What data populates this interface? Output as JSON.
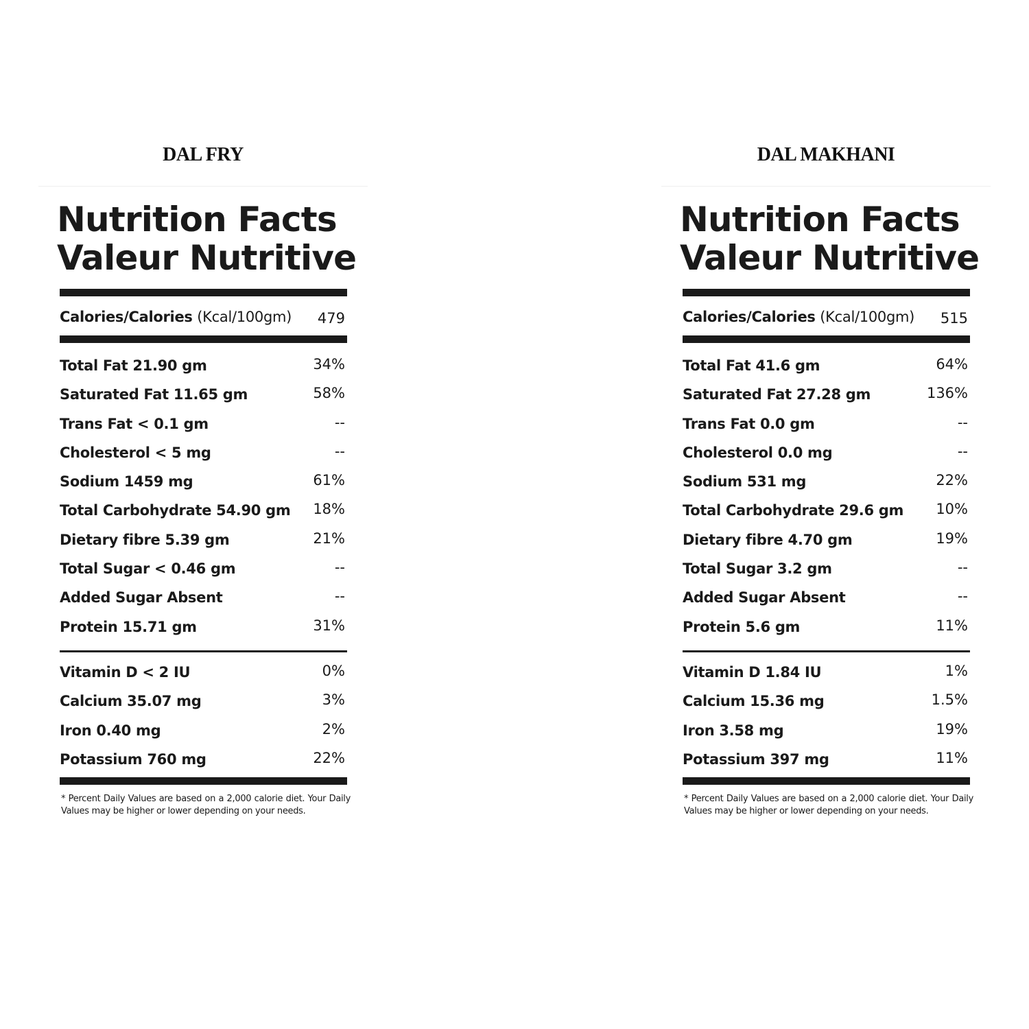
{
  "panels": [
    {
      "product": "DAL FRY",
      "title_line1": "Nutrition Facts",
      "title_line2": "Valeur Nutritive",
      "calories_label": "Calories/Calories",
      "calories_unit": "(Kcal/100gm)",
      "calories_value": "479",
      "nutrients": [
        {
          "label": "Total Fat 21.90 gm",
          "value": "34%"
        },
        {
          "label": "Saturated Fat 11.65 gm",
          "value": "58%"
        },
        {
          "label": "Trans Fat < 0.1 gm",
          "value": "--"
        },
        {
          "label": "Cholesterol < 5 mg",
          "value": "--"
        },
        {
          "label": "Sodium 1459 mg",
          "value": "61%"
        },
        {
          "label": "Total Carbohydrate 54.90 gm",
          "value": "18%"
        },
        {
          "label": "Dietary fibre 5.39 gm",
          "value": "21%"
        },
        {
          "label": "Total Sugar < 0.46 gm",
          "value": "--"
        },
        {
          "label": "Added Sugar Absent",
          "value": "--"
        },
        {
          "label": "Protein 15.71 gm",
          "value": "31%"
        }
      ],
      "vitamins": [
        {
          "label": "Vitamin D < 2 IU",
          "value": "0%"
        },
        {
          "label": "Calcium 35.07 mg",
          "value": "3%"
        },
        {
          "label": "Iron 0.40 mg",
          "value": "2%"
        },
        {
          "label": "Potassium 760 mg",
          "value": "22%"
        }
      ],
      "footnote": "* Percent Daily Values are based on a 2,000 calorie diet. Your Daily Values may be higher or lower depending on your needs."
    },
    {
      "product": "DAL MAKHANI",
      "title_line1": "Nutrition Facts",
      "title_line2": "Valeur Nutritive",
      "calories_label": "Calories/Calories",
      "calories_unit": "(Kcal/100gm)",
      "calories_value": "515",
      "nutrients": [
        {
          "label": "Total Fat 41.6 gm",
          "value": "64%"
        },
        {
          "label": "Saturated Fat 27.28 gm",
          "value": "136%"
        },
        {
          "label": "Trans Fat 0.0 gm",
          "value": "--"
        },
        {
          "label": "Cholesterol 0.0 mg",
          "value": "--"
        },
        {
          "label": "Sodium 531 mg",
          "value": "22%"
        },
        {
          "label": "Total Carbohydrate 29.6 gm",
          "value": "10%"
        },
        {
          "label": "Dietary fibre 4.70 gm",
          "value": "19%"
        },
        {
          "label": "Total Sugar 3.2 gm",
          "value": "--"
        },
        {
          "label": "Added Sugar Absent",
          "value": "--"
        },
        {
          "label": "Protein 5.6 gm",
          "value": "11%"
        }
      ],
      "vitamins": [
        {
          "label": "Vitamin D 1.84 IU",
          "value": "1%"
        },
        {
          "label": "Calcium 15.36 mg",
          "value": "1.5%"
        },
        {
          "label": "Iron 3.58 mg",
          "value": "19%"
        },
        {
          "label": "Potassium 397 mg",
          "value": "11%"
        }
      ],
      "footnote": "* Percent Daily Values are based on a 2,000 calorie diet. Your Daily Values may be higher or lower depending on your needs."
    }
  ]
}
